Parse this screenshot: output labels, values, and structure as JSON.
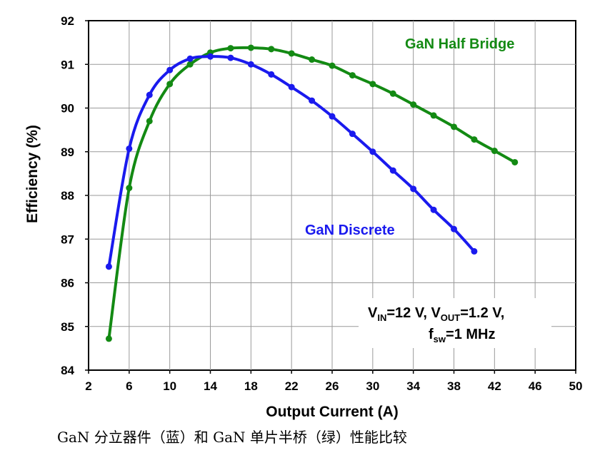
{
  "chart_data": {
    "type": "line",
    "xlabel": "Output Current (A)",
    "ylabel": "Efficiency (%)",
    "xlim": [
      2,
      50
    ],
    "ylim": [
      84,
      92
    ],
    "x_ticks": [
      "2",
      "6",
      "10",
      "14",
      "18",
      "22",
      "26",
      "30",
      "34",
      "38",
      "42",
      "46",
      "50"
    ],
    "y_ticks": [
      "84",
      "85",
      "86",
      "87",
      "88",
      "89",
      "90",
      "91",
      "92"
    ],
    "grid": true,
    "series": [
      {
        "name": "GaN Half Bridge",
        "color": "#138a13",
        "x": [
          4,
          6,
          8,
          10,
          12,
          14,
          16,
          18,
          20,
          22,
          24,
          26,
          28,
          30,
          32,
          34,
          36,
          38,
          40,
          42,
          44
        ],
        "y": [
          84.72,
          88.17,
          89.7,
          90.55,
          91.0,
          91.27,
          91.37,
          91.38,
          91.35,
          91.25,
          91.11,
          90.97,
          90.75,
          90.55,
          90.33,
          90.08,
          89.83,
          89.57,
          89.28,
          89.02,
          88.76
        ]
      },
      {
        "name": "GaN Discrete",
        "color": "#1a1aee",
        "x": [
          4,
          6,
          8,
          10,
          12,
          14,
          16,
          18,
          20,
          22,
          24,
          26,
          28,
          30,
          32,
          34,
          36,
          38,
          40
        ],
        "y": [
          86.37,
          89.07,
          90.3,
          90.87,
          91.13,
          91.18,
          91.15,
          91.0,
          90.77,
          90.48,
          90.17,
          89.81,
          89.41,
          89.0,
          88.57,
          88.15,
          87.67,
          87.23,
          86.72
        ]
      }
    ],
    "conditions": {
      "line1_v1": "V",
      "line1_v1_sub": "IN",
      "line1_v1_value": "=12 V, ",
      "line1_v2": "V",
      "line1_v2_sub": "OUT",
      "line1_v2_value": "=1.2 V,",
      "line2_f": "f",
      "line2_f_sub": "sw",
      "line2_f_value": "=1 MHz"
    }
  },
  "caption": "GaN 分立器件（蓝）和 GaN 单片半桥（绿）性能比较"
}
